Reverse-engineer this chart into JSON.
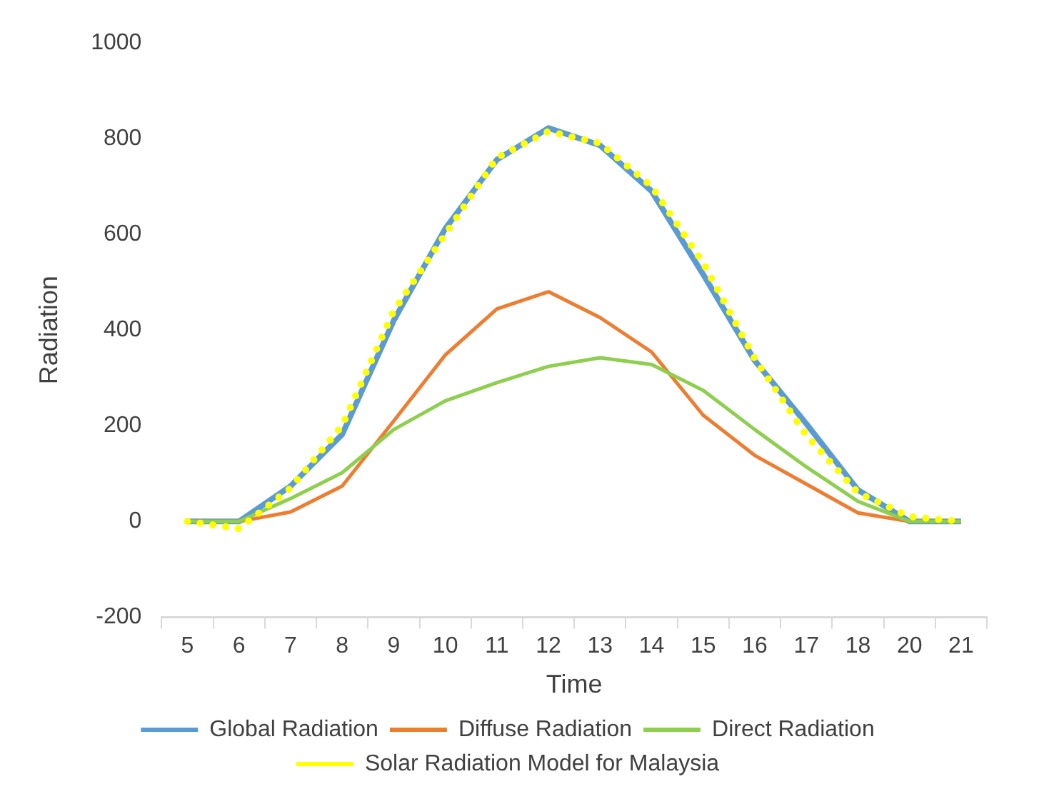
{
  "chart_data": {
    "type": "line",
    "xlabel": "Time",
    "ylabel": "Radiation",
    "categories": [
      "5",
      "6",
      "7",
      "8",
      "9",
      "10",
      "11",
      "12",
      "13",
      "14",
      "15",
      "16",
      "17",
      "18",
      "20",
      "21"
    ],
    "series": [
      {
        "name": "Global Radiation",
        "color": "#5b9bd5",
        "values": [
          0,
          0,
          74,
          182,
          420,
          612,
          756,
          822,
          786,
          690,
          516,
          336,
          204,
          66,
          0,
          0
        ]
      },
      {
        "name": "Diffuse Radiation",
        "color": "#ed7d31",
        "values": [
          0,
          0,
          20,
          74,
          210,
          348,
          444,
          480,
          426,
          354,
          222,
          138,
          78,
          18,
          0,
          0
        ]
      },
      {
        "name": "Direct Radiation",
        "color": "#8fcf4f",
        "values": [
          0,
          0,
          48,
          102,
          192,
          252,
          290,
          324,
          342,
          328,
          274,
          192,
          114,
          42,
          0,
          0
        ]
      },
      {
        "name": "Solar Radiation Model for Malaysia",
        "color": "#ffff00",
        "line_style": "dotted",
        "values": [
          0,
          -15,
          70,
          200,
          440,
          600,
          760,
          815,
          790,
          700,
          540,
          340,
          180,
          60,
          10,
          0
        ]
      }
    ],
    "ylim": [
      -200,
      1000
    ],
    "yticks": [
      -200,
      0,
      200,
      400,
      600,
      800,
      1000
    ],
    "grid": false,
    "legend": "bottom",
    "marker": "none",
    "line_style": "solid"
  }
}
